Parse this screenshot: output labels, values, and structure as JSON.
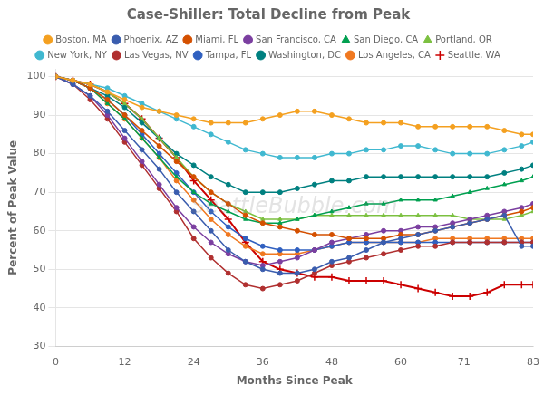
{
  "chart_data": {
    "type": "line",
    "title": "Case-Shiller: Total Decline from Peak",
    "xlabel": "Months Since Peak",
    "ylabel": "Percent of Peak Value",
    "annotations": [
      "SeattleBubble.com"
    ],
    "xlim": [
      0,
      83
    ],
    "ylim": [
      30,
      102
    ],
    "xticks": [
      0,
      12,
      24,
      36,
      48,
      60,
      71,
      83
    ],
    "yticks": [
      30,
      40,
      50,
      60,
      70,
      80,
      90,
      100
    ],
    "grid": "y",
    "legend": "top",
    "x": [
      0,
      3,
      6,
      9,
      12,
      15,
      18,
      21,
      24,
      27,
      30,
      33,
      36,
      39,
      42,
      45,
      48,
      51,
      54,
      57,
      60,
      63,
      66,
      69,
      72,
      75,
      78,
      81,
      83
    ],
    "series": [
      {
        "name": "Boston, MA",
        "color": "#F4A020",
        "marker": "circle",
        "values": [
          100,
          99,
          98,
          96,
          94,
          92,
          91,
          90,
          89,
          88,
          88,
          88,
          89,
          90,
          91,
          91,
          90,
          89,
          88,
          88,
          88,
          87,
          87,
          87,
          87,
          87,
          86,
          85,
          85
        ]
      },
      {
        "name": "Phoenix, AZ",
        "color": "#3A5DAE",
        "marker": "circle",
        "values": [
          100,
          98,
          95,
          91,
          86,
          81,
          76,
          70,
          65,
          60,
          55,
          52,
          50,
          49,
          49,
          50,
          52,
          53,
          55,
          57,
          58,
          59,
          60,
          61,
          62,
          63,
          64,
          56,
          56
        ]
      },
      {
        "name": "Miami, FL",
        "color": "#D45000",
        "marker": "circle",
        "values": [
          100,
          99,
          97,
          94,
          90,
          86,
          82,
          78,
          74,
          70,
          67,
          64,
          62,
          61,
          60,
          59,
          59,
          58,
          58,
          58,
          59,
          59,
          60,
          61,
          62,
          63,
          64,
          65,
          66
        ]
      },
      {
        "name": "San Francisco, CA",
        "color": "#7B3FA0",
        "marker": "circle",
        "values": [
          100,
          98,
          95,
          90,
          84,
          78,
          72,
          66,
          61,
          57,
          54,
          52,
          51,
          52,
          53,
          55,
          57,
          58,
          59,
          60,
          60,
          61,
          61,
          62,
          63,
          64,
          65,
          66,
          67
        ]
      },
      {
        "name": "San Diego, CA",
        "color": "#00A050",
        "marker": "triangle",
        "values": [
          100,
          99,
          97,
          93,
          89,
          84,
          79,
          74,
          70,
          67,
          65,
          63,
          62,
          62,
          63,
          64,
          65,
          66,
          67,
          67,
          68,
          68,
          68,
          69,
          70,
          71,
          72,
          73,
          74
        ]
      },
      {
        "name": "Portland, OR",
        "color": "#7CC040",
        "marker": "triangle",
        "values": [
          100,
          99,
          98,
          96,
          93,
          89,
          84,
          79,
          74,
          70,
          67,
          65,
          63,
          63,
          63,
          64,
          64,
          64,
          64,
          64,
          64,
          64,
          64,
          64,
          63,
          63,
          63,
          64,
          65
        ]
      },
      {
        "name": "New York, NY",
        "color": "#40B8D0",
        "marker": "circle",
        "values": [
          100,
          99,
          98,
          97,
          95,
          93,
          91,
          89,
          87,
          85,
          83,
          81,
          80,
          79,
          79,
          79,
          80,
          80,
          81,
          81,
          82,
          82,
          81,
          80,
          80,
          80,
          81,
          82,
          83
        ]
      },
      {
        "name": "Las Vegas, NV",
        "color": "#B03030",
        "marker": "circle",
        "values": [
          100,
          98,
          94,
          89,
          83,
          77,
          71,
          65,
          58,
          53,
          49,
          46,
          45,
          46,
          47,
          49,
          51,
          52,
          53,
          54,
          55,
          56,
          56,
          57,
          57,
          57,
          57,
          57,
          57
        ]
      },
      {
        "name": "Tampa, FL",
        "color": "#3060C0",
        "marker": "circle",
        "values": [
          100,
          99,
          97,
          94,
          90,
          85,
          80,
          75,
          70,
          65,
          61,
          58,
          56,
          55,
          55,
          55,
          56,
          57,
          57,
          57,
          57,
          57,
          57,
          57,
          57,
          57,
          57,
          57,
          57
        ]
      },
      {
        "name": "Washington, DC",
        "color": "#008080",
        "marker": "circle",
        "values": [
          100,
          99,
          97,
          95,
          92,
          88,
          84,
          80,
          77,
          74,
          72,
          70,
          70,
          70,
          71,
          72,
          73,
          73,
          74,
          74,
          74,
          74,
          74,
          74,
          74,
          74,
          75,
          76,
          77
        ]
      },
      {
        "name": "Los Angeles, CA",
        "color": "#F07820",
        "marker": "circle",
        "values": [
          100,
          99,
          97,
          93,
          89,
          84,
          79,
          73,
          68,
          63,
          59,
          56,
          54,
          54,
          54,
          55,
          56,
          57,
          57,
          57,
          57,
          57,
          58,
          58,
          58,
          58,
          58,
          58,
          58
        ]
      },
      {
        "name": "Seattle, WA",
        "color": "#CC0000",
        "marker": "cross",
        "values": [
          100,
          99,
          98,
          96,
          93,
          89,
          84,
          79,
          73,
          68,
          63,
          57,
          52,
          50,
          49,
          48,
          48,
          47,
          47,
          47,
          46,
          45,
          44,
          43,
          43,
          44,
          46,
          46,
          46
        ]
      }
    ]
  }
}
